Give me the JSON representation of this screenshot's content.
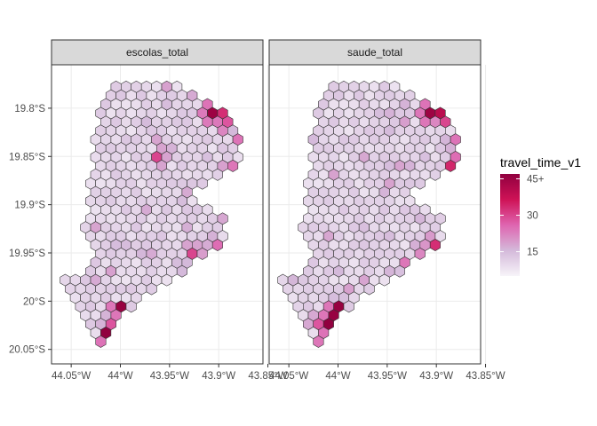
{
  "chart_data": {
    "type": "map",
    "fill_variable": "travel_time_v1",
    "facets": [
      {
        "label": "escolas_total",
        "hotspots": [
          {
            "lon": -43.912,
            "lat": -19.803,
            "value": 38
          },
          {
            "lon": -43.907,
            "lat": -19.807,
            "value": 45
          },
          {
            "lon": -43.905,
            "lat": -19.797,
            "value": 47
          },
          {
            "lon": -43.9,
            "lat": -19.805,
            "value": 33
          },
          {
            "lon": -43.888,
            "lat": -19.812,
            "value": 28
          },
          {
            "lon": -43.875,
            "lat": -19.835,
            "value": 47
          },
          {
            "lon": -43.895,
            "lat": -19.822,
            "value": 22
          },
          {
            "lon": -43.883,
            "lat": -19.868,
            "value": 46
          },
          {
            "lon": -43.925,
            "lat": -19.95,
            "value": 30
          },
          {
            "lon": -43.916,
            "lat": -19.958,
            "value": 32
          },
          {
            "lon": -43.91,
            "lat": -19.963,
            "value": 28
          },
          {
            "lon": -43.905,
            "lat": -19.94,
            "value": 25
          },
          {
            "lon": -43.93,
            "lat": -19.965,
            "value": 22
          },
          {
            "lon": -44.002,
            "lat": -20.009,
            "value": 46
          },
          {
            "lon": -43.999,
            "lat": -20.018,
            "value": 35
          },
          {
            "lon": -44.015,
            "lat": -20.02,
            "value": 24
          },
          {
            "lon": -44.008,
            "lat": -20.027,
            "value": 28
          },
          {
            "lon": -44.012,
            "lat": -20.034,
            "value": 47
          },
          {
            "lon": -44.014,
            "lat": -20.042,
            "value": 47
          },
          {
            "lon": -44.018,
            "lat": -20.05,
            "value": 46
          },
          {
            "lon": -44.01,
            "lat": -20.05,
            "value": 46
          },
          {
            "lon": -43.96,
            "lat": -19.85,
            "value": 30
          }
        ]
      },
      {
        "label": "saude_total",
        "hotspots": [
          {
            "lon": -43.912,
            "lat": -19.808,
            "value": 46
          },
          {
            "lon": -43.907,
            "lat": -19.802,
            "value": 45
          },
          {
            "lon": -43.903,
            "lat": -19.796,
            "value": 47
          },
          {
            "lon": -43.897,
            "lat": -19.808,
            "value": 40
          },
          {
            "lon": -43.888,
            "lat": -19.812,
            "value": 30
          },
          {
            "lon": -43.872,
            "lat": -19.838,
            "value": 47
          },
          {
            "lon": -43.88,
            "lat": -19.85,
            "value": 25
          },
          {
            "lon": -43.883,
            "lat": -19.868,
            "value": 46
          },
          {
            "lon": -43.885,
            "lat": -19.86,
            "value": 34
          },
          {
            "lon": -43.91,
            "lat": -19.95,
            "value": 35
          },
          {
            "lon": -43.915,
            "lat": -19.96,
            "value": 40
          },
          {
            "lon": -43.923,
            "lat": -19.964,
            "value": 46
          },
          {
            "lon": -43.905,
            "lat": -19.942,
            "value": 33
          },
          {
            "lon": -43.898,
            "lat": -19.946,
            "value": 30
          },
          {
            "lon": -44.0,
            "lat": -20.009,
            "value": 46
          },
          {
            "lon": -43.995,
            "lat": -20.016,
            "value": 40
          },
          {
            "lon": -44.005,
            "lat": -20.019,
            "value": 46
          },
          {
            "lon": -44.012,
            "lat": -20.026,
            "value": 47
          },
          {
            "lon": -44.008,
            "lat": -20.034,
            "value": 47
          },
          {
            "lon": -44.015,
            "lat": -20.042,
            "value": 46
          },
          {
            "lon": -44.01,
            "lat": -20.05,
            "value": 47
          },
          {
            "lon": -44.02,
            "lat": -20.022,
            "value": 28
          },
          {
            "lon": -44.04,
            "lat": -19.855,
            "value": 22
          }
        ]
      }
    ],
    "x_axis": {
      "lim": [
        -44.07,
        -43.855
      ],
      "ticks": [
        -44.05,
        -44.0,
        -43.95,
        -43.9,
        -43.85
      ],
      "tick_labels": [
        "44.05°W",
        "44°W",
        "43.95°W",
        "43.9°W",
        "43.85°W"
      ]
    },
    "y_axis": {
      "lim": [
        -20.065,
        -19.755
      ],
      "ticks": [
        -19.8,
        -19.85,
        -19.9,
        -19.95,
        -20.0,
        -20.05
      ],
      "tick_labels": [
        "19.8°S",
        "19.85°S",
        "19.9°S",
        "19.95°S",
        "20°S",
        "20.05°S"
      ]
    },
    "legend": {
      "title": "travel_time_v1",
      "position": "right",
      "range": [
        5,
        47
      ],
      "breaks": [
        15,
        30,
        45
      ],
      "break_labels": [
        "15",
        "30",
        "45+"
      ],
      "colors": [
        "#f7f4f9",
        "#d4b9da",
        "#df65b0",
        "#ce1256",
        "#91003f"
      ]
    },
    "grid": true,
    "hex_outline_color": "#333333"
  }
}
